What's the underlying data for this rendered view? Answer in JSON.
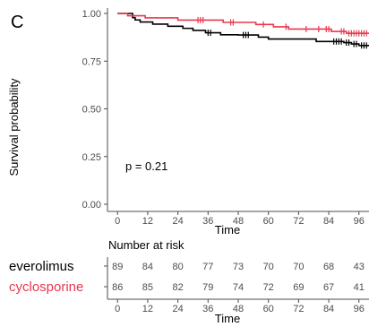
{
  "panel_label": "C",
  "colors": {
    "everolimus": "#000000",
    "cyclosporine": "#e8384f",
    "axis": "#4d4d4d"
  },
  "chart_data": [
    {
      "type": "line",
      "subtype": "kaplan-meier",
      "xlabel": "Time",
      "ylabel": "Survival probability",
      "xlim": [
        -4,
        100
      ],
      "ylim": [
        0,
        1
      ],
      "xticks": [
        0,
        12,
        24,
        36,
        48,
        60,
        72,
        84,
        96
      ],
      "yticks": [
        0.0,
        0.25,
        0.5,
        0.75,
        1.0
      ],
      "ytick_labels": [
        "0.00",
        "0.25",
        "0.50",
        "0.75",
        "1.00"
      ],
      "annotation": "p = 0.21",
      "grid": false,
      "series": [
        {
          "name": "everolimus",
          "color": "#000000",
          "x": [
            0,
            6,
            7,
            9,
            14,
            20,
            26,
            30,
            35,
            38,
            41,
            48,
            56,
            60,
            73,
            79,
            84,
            90,
            93,
            96,
            100
          ],
          "y": [
            1.0,
            0.978,
            0.966,
            0.955,
            0.944,
            0.933,
            0.922,
            0.911,
            0.899,
            0.899,
            0.888,
            0.887,
            0.876,
            0.866,
            0.866,
            0.853,
            0.853,
            0.847,
            0.84,
            0.832,
            0.832
          ]
        },
        {
          "name": "cyclosporine",
          "color": "#e8384f",
          "x": [
            0,
            4,
            7,
            11,
            24,
            38,
            42,
            55,
            62,
            68,
            78,
            85,
            87,
            91,
            100
          ],
          "y": [
            1.0,
            0.988,
            0.988,
            0.977,
            0.965,
            0.965,
            0.953,
            0.942,
            0.93,
            0.918,
            0.918,
            0.906,
            0.906,
            0.896,
            0.896
          ]
        }
      ],
      "censor_marks": {
        "everolimus": [
          36,
          37,
          50,
          51,
          52,
          86,
          87,
          88,
          89,
          91,
          92,
          94,
          95,
          97,
          98,
          99
        ],
        "cyclosporine": [
          32,
          33,
          34,
          45,
          46,
          58,
          67,
          75,
          80,
          83,
          84,
          89,
          90,
          92,
          93,
          94,
          95,
          96,
          97,
          98,
          99
        ]
      }
    },
    {
      "type": "table",
      "title": "Number at risk",
      "xlabel": "Time",
      "xticks": [
        0,
        12,
        24,
        36,
        48,
        60,
        72,
        84,
        96
      ],
      "rows": [
        {
          "name": "everolimus",
          "color": "#000000",
          "values": [
            89,
            84,
            80,
            77,
            73,
            70,
            70,
            68,
            43
          ]
        },
        {
          "name": "cyclosporine",
          "color": "#e8384f",
          "values": [
            86,
            85,
            82,
            79,
            74,
            72,
            69,
            67,
            41
          ]
        }
      ]
    }
  ]
}
